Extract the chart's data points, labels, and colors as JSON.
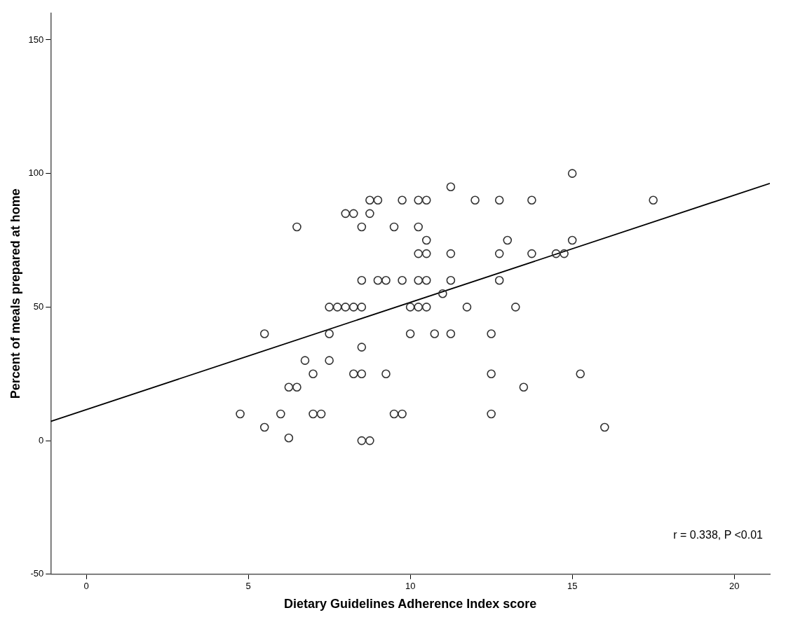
{
  "chart_data": {
    "type": "scatter",
    "xlabel": "Dietary Guidelines Adherence Index score",
    "ylabel": "Percent of meals prepared at home",
    "xlim": [
      -1.1,
      21.1
    ],
    "ylim": [
      -50,
      160
    ],
    "xticks": [
      0,
      5,
      10,
      15,
      20
    ],
    "yticks": [
      -50,
      0,
      50,
      100,
      150
    ],
    "grid": false,
    "legend": false,
    "marker": "circle",
    "annotations": [
      "r = 0.338, P <0.01"
    ],
    "series": [
      {
        "color": "#333333",
        "x": [
          15,
          11.25,
          8.75,
          9,
          9.75,
          10.25,
          10.5,
          12,
          12.75,
          13.75,
          17.5,
          8,
          8.25,
          8.75,
          6.5,
          8.5,
          9.5,
          10.25,
          10.5,
          13,
          15,
          10.25,
          10.5,
          11.25,
          12.75,
          13.75,
          14.5,
          14.75,
          8.5,
          9,
          9.25,
          9.75,
          10.25,
          10.5,
          11.25,
          12.75,
          11,
          7.5,
          7.75,
          8,
          8.25,
          8.5,
          10,
          10.25,
          10.5,
          11.75,
          13.25,
          5.5,
          7.5,
          10,
          10.75,
          11.25,
          12.5,
          8.5,
          6.75,
          7.5,
          7,
          8.25,
          8.5,
          9.25,
          12.5,
          15.25,
          6.25,
          6.5,
          13.5,
          4.75,
          6,
          7,
          7.25,
          9.5,
          9.75,
          12.5,
          5.5,
          16,
          6.25,
          8.5,
          8.75
        ],
        "values": [
          100,
          95,
          90,
          90,
          90,
          90,
          90,
          90,
          90,
          90,
          90,
          85,
          85,
          85,
          80,
          80,
          80,
          80,
          75,
          75,
          75,
          70,
          70,
          70,
          70,
          70,
          70,
          70,
          60,
          60,
          60,
          60,
          60,
          60,
          60,
          60,
          55,
          50,
          50,
          50,
          50,
          50,
          50,
          50,
          50,
          50,
          50,
          40,
          40,
          40,
          40,
          40,
          40,
          35,
          30,
          30,
          25,
          25,
          25,
          25,
          25,
          25,
          20,
          20,
          20,
          10,
          10,
          10,
          10,
          10,
          10,
          10,
          5,
          5,
          1,
          0,
          0
        ]
      },
      {
        "type": "line",
        "color": "#000000",
        "marker": "none",
        "x": [
          -1.1,
          21.1
        ],
        "values": [
          7.2,
          96.3
        ]
      }
    ]
  }
}
